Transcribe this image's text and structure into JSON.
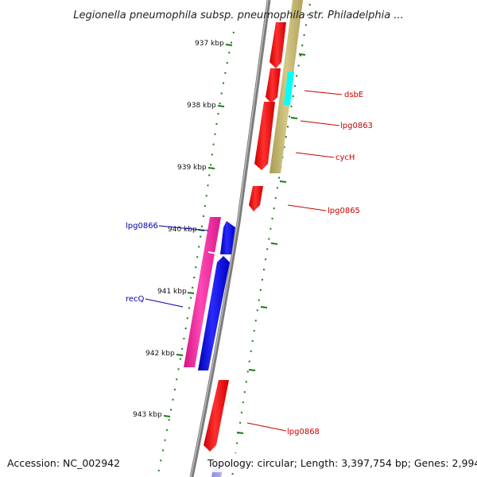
{
  "title": "Legionella pneumophila subsp. pneumophila str. Philadelphia ...",
  "footer": {
    "accession": "Accession: NC_002942",
    "topology": "Topology: circular; Length: 3,397,754 bp; Genes: 2,994"
  },
  "ticks": [
    {
      "label": "937 kbp"
    },
    {
      "label": "938 kbp"
    },
    {
      "label": "939 kbp"
    },
    {
      "label": "940 kbp"
    },
    {
      "label": "941 kbp"
    },
    {
      "label": "942 kbp"
    },
    {
      "label": "943 kbp"
    }
  ],
  "colors": {
    "forward_gene": "#ff0000",
    "reverse_gene_blue": "#0000ee",
    "reverse_gene_magenta": "#ee1a99",
    "orf_track": "#c2b56e",
    "highlight": "#00ffff",
    "backbone": "#8a8a8a",
    "tick_green": "#1a7a1a",
    "label_red": "#cc0000",
    "label_blue": "#0000aa"
  },
  "gene_labels": [
    {
      "text": "dsbE",
      "side": "right",
      "color": "#cc0000"
    },
    {
      "text": "lpg0863",
      "side": "right",
      "color": "#cc0000"
    },
    {
      "text": "cycH",
      "side": "right",
      "color": "#cc0000"
    },
    {
      "text": "lpg0865",
      "side": "right",
      "color": "#cc0000"
    },
    {
      "text": "lpg0866",
      "side": "left",
      "color": "#0000aa"
    },
    {
      "text": "recQ",
      "side": "left",
      "color": "#0000aa"
    },
    {
      "text": "lpg0868",
      "side": "right",
      "color": "#cc0000"
    }
  ]
}
